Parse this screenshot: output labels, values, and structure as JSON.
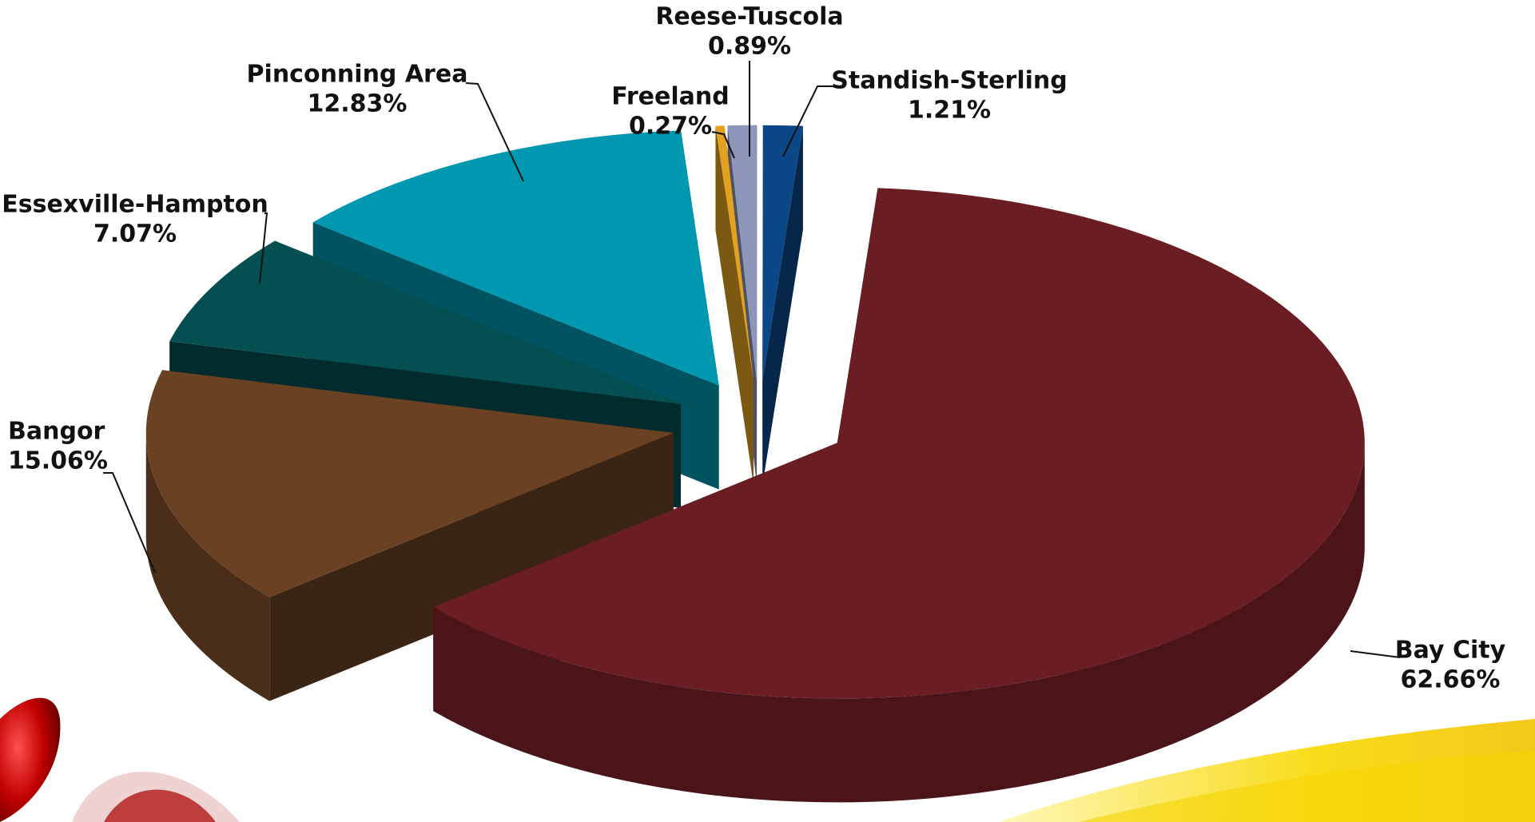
{
  "chart_data": {
    "type": "pie",
    "categories": [
      "Bay City",
      "Bangor",
      "Essexville-Hampton",
      "Pinconning Area",
      "Freeland",
      "Reese-Tuscola",
      "Standish-Sterling"
    ],
    "values": [
      62.66,
      15.06,
      7.07,
      12.83,
      0.27,
      0.89,
      1.21
    ],
    "value_labels": [
      "62.66%",
      "15.06%",
      "7.07%",
      "12.83%",
      "0.27%",
      "0.89%",
      "1.21%"
    ],
    "colors": [
      "#6a1d22",
      "#6a4223",
      "#044f52",
      "#0097b0",
      "#e2a121",
      "#8d95b9",
      "#0b4786"
    ]
  }
}
